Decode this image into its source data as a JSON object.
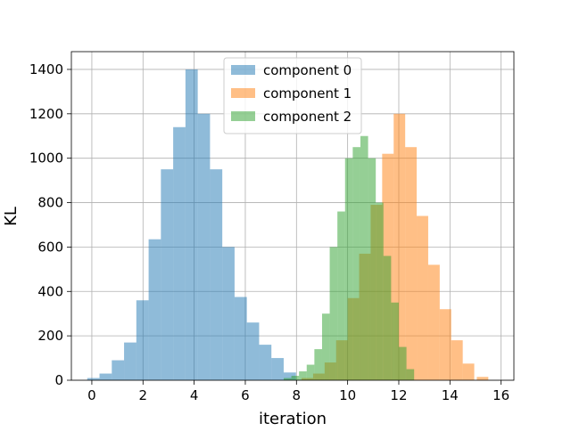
{
  "chart_data": {
    "type": "bar",
    "title": "",
    "xlabel": "iteration",
    "ylabel": "KL",
    "xlim": [
      -0.8,
      16.5
    ],
    "ylim": [
      0,
      1480
    ],
    "xticks": [
      0,
      2,
      4,
      6,
      8,
      10,
      12,
      14,
      16
    ],
    "xtick_labels": [
      "0",
      "2",
      "4",
      "6",
      "8",
      "10",
      "12",
      "14",
      "16"
    ],
    "yticks": [
      0,
      200,
      400,
      600,
      800,
      1000,
      1200,
      1400
    ],
    "ytick_labels": [
      "0",
      "200",
      "400",
      "600",
      "800",
      "1000",
      "1200",
      "1400"
    ],
    "grid": true,
    "legend_position": "top-center",
    "series": [
      {
        "name": "component 0",
        "color": "#1f77b4",
        "alpha": 0.5,
        "bin_left_edges": [
          -0.18,
          0.3,
          0.78,
          1.26,
          1.74,
          2.22,
          2.7,
          3.18,
          3.66,
          4.14,
          4.62,
          5.1,
          5.58,
          6.06,
          6.54,
          7.02,
          7.5
        ],
        "bin_width": 0.48,
        "counts": [
          10,
          30,
          90,
          170,
          360,
          635,
          950,
          1140,
          1400,
          1200,
          950,
          600,
          375,
          260,
          160,
          100,
          35
        ]
      },
      {
        "name": "component 1",
        "color": "#ff7f0e",
        "alpha": 0.5,
        "bin_left_edges": [
          8.2,
          8.65,
          9.1,
          9.55,
          10.0,
          10.45,
          10.9,
          11.35,
          11.8,
          12.25,
          12.7,
          13.15,
          13.6,
          14.05,
          14.5,
          15.05
        ],
        "bin_width": 0.45,
        "counts": [
          10,
          30,
          80,
          180,
          370,
          570,
          790,
          1020,
          1200,
          1050,
          740,
          520,
          320,
          180,
          75,
          15
        ]
      },
      {
        "name": "component 2",
        "color": "#2ca02c",
        "alpha": 0.5,
        "bin_left_edges": [
          7.5,
          7.8,
          8.1,
          8.4,
          8.7,
          9.0,
          9.3,
          9.6,
          9.9,
          10.2,
          10.5,
          10.8,
          11.1,
          11.4,
          11.7,
          12.0,
          12.3
        ],
        "bin_width": 0.3,
        "counts": [
          10,
          20,
          40,
          70,
          140,
          300,
          600,
          760,
          1000,
          1050,
          1100,
          1000,
          800,
          560,
          350,
          150,
          50
        ]
      }
    ]
  }
}
